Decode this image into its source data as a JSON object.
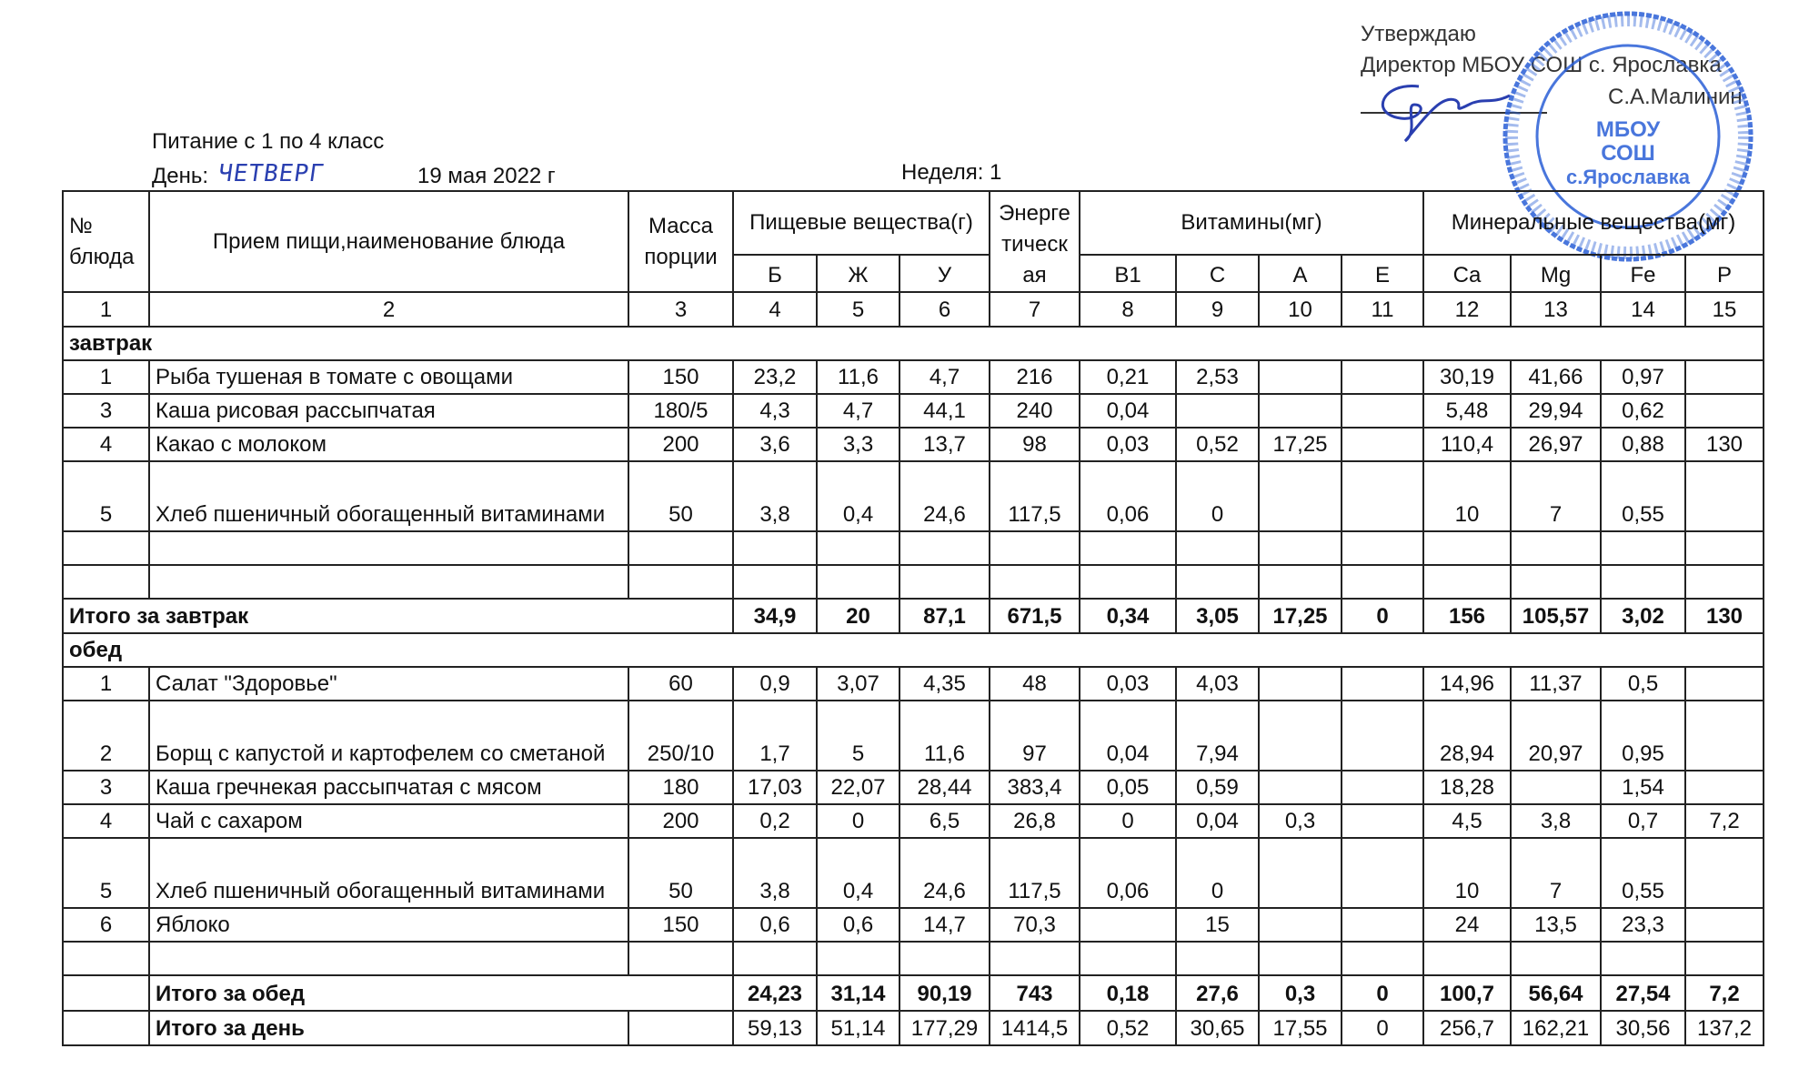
{
  "approval": {
    "line1": "Утверждаю",
    "line2": "Директор МБОУ СОШ с. Ярославка",
    "name": "С.А.Малинин"
  },
  "stamp": {
    "center_text": [
      "МБОУ",
      "СОШ",
      "с.Ярославка"
    ],
    "color": "#2a5fd6"
  },
  "title": "Питание с 1 по 4 класс",
  "day_label": "День:",
  "day_value": "ЧЕТВЕРГ",
  "date": "19 мая  2022 г",
  "week": "Неделя: 1",
  "header": {
    "no": "№ блюда",
    "name": "Прием пищи,наименование блюда",
    "mass": "Масса порции",
    "nutrients": "Пищевые вещества(г)",
    "energy": "Энергетическая",
    "vitamins": "Витамины(мг)",
    "minerals": "Минеральные вещества(мг)",
    "sub": [
      "Б",
      "Ж",
      "У",
      "B1",
      "C",
      "A",
      "E",
      "Ca",
      "Mg",
      "Fe",
      "P"
    ]
  },
  "column_numbers": [
    "1",
    "2",
    "3",
    "4",
    "5",
    "6",
    "7",
    "8",
    "9",
    "10",
    "11",
    "12",
    "13",
    "14",
    "15"
  ],
  "breakfast": {
    "label": "завтрак",
    "rows": [
      {
        "no": "1",
        "name": "Рыба тушеная в томате с овощами",
        "mass": "150",
        "values": [
          "23,2",
          "11,6",
          "4,7",
          "216",
          "0,21",
          "2,53",
          "",
          "",
          "30,19",
          "41,66",
          "0,97",
          ""
        ]
      },
      {
        "no": "3",
        "name": "Каша рисовая рассыпчатая",
        "mass": "180/5",
        "values": [
          "4,3",
          "4,7",
          "44,1",
          "240",
          "0,04",
          "",
          "",
          "",
          "5,48",
          "29,94",
          "0,62",
          ""
        ]
      },
      {
        "no": "4",
        "name": "Какао с молоком",
        "mass": "200",
        "values": [
          "3,6",
          "3,3",
          "13,7",
          "98",
          "0,03",
          "0,52",
          "17,25",
          "",
          "110,4",
          "26,97",
          "0,88",
          "130"
        ]
      },
      {
        "no": "5",
        "name": "Хлеб пшеничный обогащенный витаминами",
        "mass": "50",
        "values": [
          "3,8",
          "0,4",
          "24,6",
          "117,5",
          "0,06",
          "0",
          "",
          "",
          "10",
          "7",
          "0,55",
          ""
        ],
        "tall": true
      }
    ],
    "blank_rows": 2,
    "total": {
      "label": "Итого за завтрак",
      "values": [
        "34,9",
        "20",
        "87,1",
        "671,5",
        "0,34",
        "3,05",
        "17,25",
        "0",
        "156",
        "105,57",
        "3,02",
        "130"
      ]
    }
  },
  "lunch": {
    "label": "обед",
    "rows": [
      {
        "no": "1",
        "name": "Салат \"Здоровье\"",
        "mass": "60",
        "values": [
          "0,9",
          "3,07",
          "4,35",
          "48",
          "0,03",
          "4,03",
          "",
          "",
          "14,96",
          "11,37",
          "0,5",
          ""
        ]
      },
      {
        "no": "2",
        "name": "Борщ с капустой и картофелем со сметаной",
        "mass": "250/10",
        "values": [
          "1,7",
          "5",
          "11,6",
          "97",
          "0,04",
          "7,94",
          "",
          "",
          "28,94",
          "20,97",
          "0,95",
          ""
        ],
        "tall": true
      },
      {
        "no": "3",
        "name": "Каша гречнекая рассыпчатая с мясом",
        "mass": "180",
        "values": [
          "17,03",
          "22,07",
          "28,44",
          "383,4",
          "0,05",
          "0,59",
          "",
          "",
          "18,28",
          "",
          "1,54",
          ""
        ]
      },
      {
        "no": "4",
        "name": "Чай с сахаром",
        "mass": "200",
        "values": [
          "0,2",
          "0",
          "6,5",
          "26,8",
          "0",
          "0,04",
          "0,3",
          "",
          "4,5",
          "3,8",
          "0,7",
          "7,2"
        ]
      },
      {
        "no": "5",
        "name": "Хлеб пшеничный обогащенный витаминами",
        "mass": "50",
        "values": [
          "3,8",
          "0,4",
          "24,6",
          "117,5",
          "0,06",
          "0",
          "",
          "",
          "10",
          "7",
          "0,55",
          ""
        ],
        "tall": true
      },
      {
        "no": "6",
        "name": "Яблоко",
        "mass": "150",
        "values": [
          "0,6",
          "0,6",
          "14,7",
          "70,3",
          "",
          "15",
          "",
          "",
          "24",
          "13,5",
          "23,3",
          ""
        ]
      }
    ],
    "blank_rows": 1,
    "total": {
      "label": "Итого за обед",
      "values": [
        "24,23",
        "31,14",
        "90,19",
        "743",
        "0,18",
        "27,6",
        "0,3",
        "0",
        "100,7",
        "56,64",
        "27,54",
        "7,2"
      ]
    }
  },
  "day_total": {
    "label": "Итого за день",
    "values": [
      "59,13",
      "51,14",
      "177,29",
      "1414,5",
      "0,52",
      "30,65",
      "17,55",
      "0",
      "256,7",
      "162,21",
      "30,56",
      "137,2"
    ]
  }
}
